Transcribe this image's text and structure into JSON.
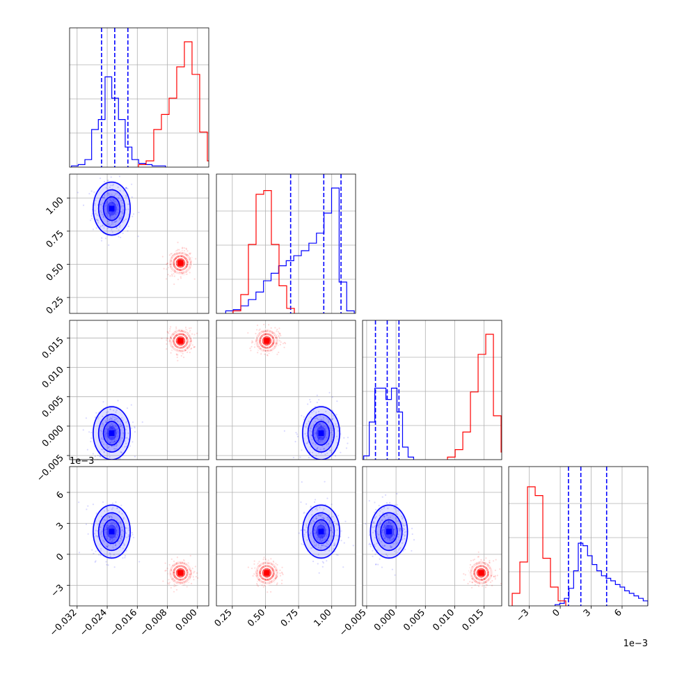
{
  "chart_data": {
    "type": "scatter",
    "subtype": "corner_plot",
    "grid": true,
    "colors": {
      "series_a": "#0000ff",
      "series_b": "#ff0000"
    },
    "params": [
      {
        "range": [
          -0.034,
          0.003
        ],
        "ticks": [
          -0.032,
          -0.024,
          -0.016,
          -0.008,
          0.0
        ],
        "tick_labels": [
          "−0.032",
          "−0.024",
          "−0.016",
          "−0.008",
          "0.000"
        ],
        "offset_label": ""
      },
      {
        "range": [
          0.13,
          1.18
        ],
        "ticks": [
          0.25,
          0.5,
          0.75,
          1.0
        ],
        "tick_labels": [
          "0.25",
          "0.50",
          "0.75",
          "1.00"
        ],
        "offset_label": ""
      },
      {
        "range": [
          -0.0057,
          0.018
        ],
        "ticks": [
          -0.005,
          0.0,
          0.005,
          0.01,
          0.015
        ],
        "tick_labels": [
          "−0.005",
          "0.000",
          "0.005",
          "0.010",
          "0.015"
        ],
        "offset_label": ""
      },
      {
        "range": [
          -5.0,
          8.5
        ],
        "ticks": [
          -3,
          0,
          3,
          6
        ],
        "tick_labels": [
          "−3",
          "0",
          "3",
          "6"
        ],
        "offset_label": "1e−3"
      }
    ],
    "series": [
      {
        "color": "#0000ff",
        "quantile_lines": [
          [
            -0.0255,
            -0.022,
            -0.0185
          ],
          [
            0.69,
            0.94,
            1.07
          ],
          [
            -0.0035,
            -0.0015,
            0.0005
          ],
          [
            0.8,
            2.0,
            4.5
          ]
        ],
        "hist_heights": [
          [
            0.01,
            0.02,
            0.06,
            0.3,
            0.38,
            0.72,
            0.55,
            0.38,
            0.16,
            0.06,
            0.03,
            0.02,
            0.01,
            0.01
          ],
          [
            0.02,
            0.03,
            0.06,
            0.11,
            0.17,
            0.26,
            0.32,
            0.38,
            0.42,
            0.46,
            0.5,
            0.56,
            0.64,
            0.8,
            1.0,
            0.25,
            0.02
          ],
          [
            0.03,
            0.3,
            0.57,
            0.57,
            0.48,
            0.57,
            0.38,
            0.1,
            0.02
          ],
          [
            0.01,
            0.02,
            0.06,
            0.14,
            0.28,
            0.5,
            0.48,
            0.4,
            0.33,
            0.28,
            0.24,
            0.22,
            0.2,
            0.17,
            0.15,
            0.12,
            0.1,
            0.08,
            0.06,
            0.04
          ]
        ],
        "cluster_centers": {
          "p0": -0.0228,
          "p1": 0.92,
          "p2": -0.0012,
          "p3": 2.2
        }
      },
      {
        "color": "#ff0000",
        "quantile_lines": [
          [],
          [],
          [],
          []
        ],
        "hist_heights": [
          [
            0.02,
            0.05,
            0.3,
            0.42,
            0.55,
            0.8,
            1.0,
            0.74,
            0.28,
            0.05
          ],
          [
            0.02,
            0.15,
            0.55,
            0.95,
            0.98,
            0.55,
            0.22,
            0.04
          ],
          [
            0.02,
            0.08,
            0.22,
            0.54,
            0.84,
            1.0,
            0.35,
            0.06
          ],
          [
            0.1,
            0.35,
            0.95,
            0.88,
            0.38,
            0.15,
            0.04
          ]
        ],
        "cluster_centers": {
          "p0": -0.0045,
          "p1": 0.51,
          "p2": 0.0145,
          "p3": -1.8
        }
      }
    ]
  }
}
